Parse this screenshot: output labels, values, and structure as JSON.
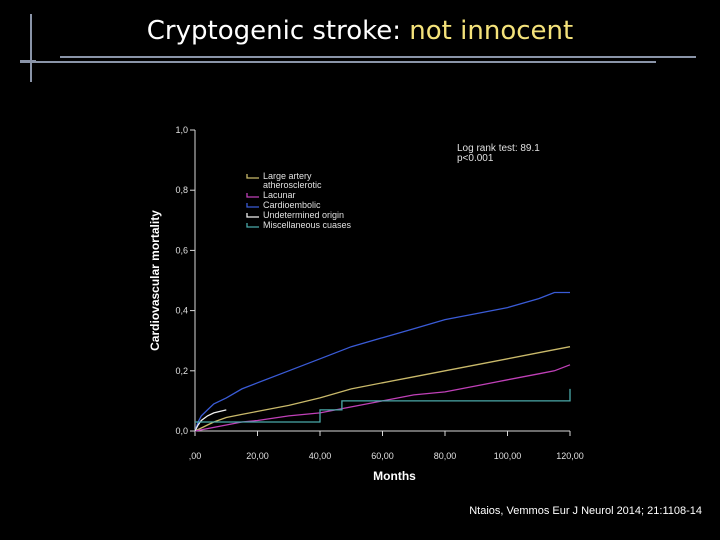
{
  "slide": {
    "title_main": "Cryptogenic stroke: ",
    "title_highlight": "not innocent",
    "citation": "Ntaios, Vemmos  Eur J Neurol 2014; 21:1108-14"
  },
  "chart_data": {
    "type": "line",
    "title": "",
    "xlabel": "Months",
    "ylabel": "Cardiovascular mortality",
    "xlim": [
      0,
      120
    ],
    "ylim": [
      0,
      1.0
    ],
    "xticks": [
      ",00",
      "20,00",
      "40,00",
      "60,00",
      "80,00",
      "100,00",
      "120,00"
    ],
    "xtick_values": [
      0,
      20,
      40,
      60,
      80,
      100,
      120
    ],
    "yticks": [
      "0,0",
      "0,2",
      "0,4",
      "0,6",
      "0,8",
      "1,0"
    ],
    "ytick_values": [
      0,
      0.2,
      0.4,
      0.6,
      0.8,
      1.0
    ],
    "annotation": [
      "Log rank test: 89.1",
      "p<0.001"
    ],
    "legend_placement": "upper-left",
    "grid": false,
    "series": [
      {
        "name": "Large artery atherosclerotic",
        "legend_lines": [
          "Large artery",
          "atherosclerotic"
        ],
        "color": "#c9b96a",
        "x": [
          0,
          2,
          4,
          6,
          10,
          15,
          20,
          30,
          40,
          50,
          60,
          70,
          80,
          90,
          100,
          110,
          120
        ],
        "y": [
          0,
          0.01,
          0.02,
          0.03,
          0.045,
          0.055,
          0.065,
          0.085,
          0.11,
          0.14,
          0.16,
          0.18,
          0.2,
          0.22,
          0.24,
          0.26,
          0.28
        ]
      },
      {
        "name": "Lacunar",
        "legend_lines": [
          "Lacunar"
        ],
        "color": "#c040b8",
        "x": [
          0,
          5,
          10,
          15,
          20,
          30,
          40,
          50,
          60,
          70,
          80,
          90,
          100,
          110,
          115,
          120
        ],
        "y": [
          0,
          0.01,
          0.02,
          0.03,
          0.035,
          0.05,
          0.06,
          0.08,
          0.1,
          0.12,
          0.13,
          0.15,
          0.17,
          0.19,
          0.2,
          0.22
        ]
      },
      {
        "name": "Cardioembolic",
        "legend_lines": [
          "Cardioembolic"
        ],
        "color": "#3a5bd6",
        "x": [
          0,
          1,
          2,
          4,
          6,
          10,
          15,
          20,
          30,
          40,
          50,
          60,
          70,
          80,
          90,
          100,
          110,
          115,
          120
        ],
        "y": [
          0,
          0.03,
          0.05,
          0.07,
          0.09,
          0.11,
          0.14,
          0.16,
          0.2,
          0.24,
          0.28,
          0.31,
          0.34,
          0.37,
          0.39,
          0.41,
          0.44,
          0.46,
          0.46
        ]
      },
      {
        "name": "Undetermined origin",
        "legend_lines": [
          "Undetermined origin"
        ],
        "color": "#f0f0f0",
        "x": [
          0,
          1,
          2,
          4,
          6,
          8,
          10
        ],
        "y": [
          0,
          0.02,
          0.035,
          0.05,
          0.06,
          0.065,
          0.07
        ]
      },
      {
        "name": "Miscellaneous cuases",
        "legend_lines": [
          "Miscellaneous cuases"
        ],
        "color": "#4aa9a9",
        "x": [
          0,
          40,
          40,
          47,
          47,
          120,
          120
        ],
        "y": [
          0.03,
          0.03,
          0.07,
          0.07,
          0.1,
          0.1,
          0.14
        ]
      }
    ]
  }
}
